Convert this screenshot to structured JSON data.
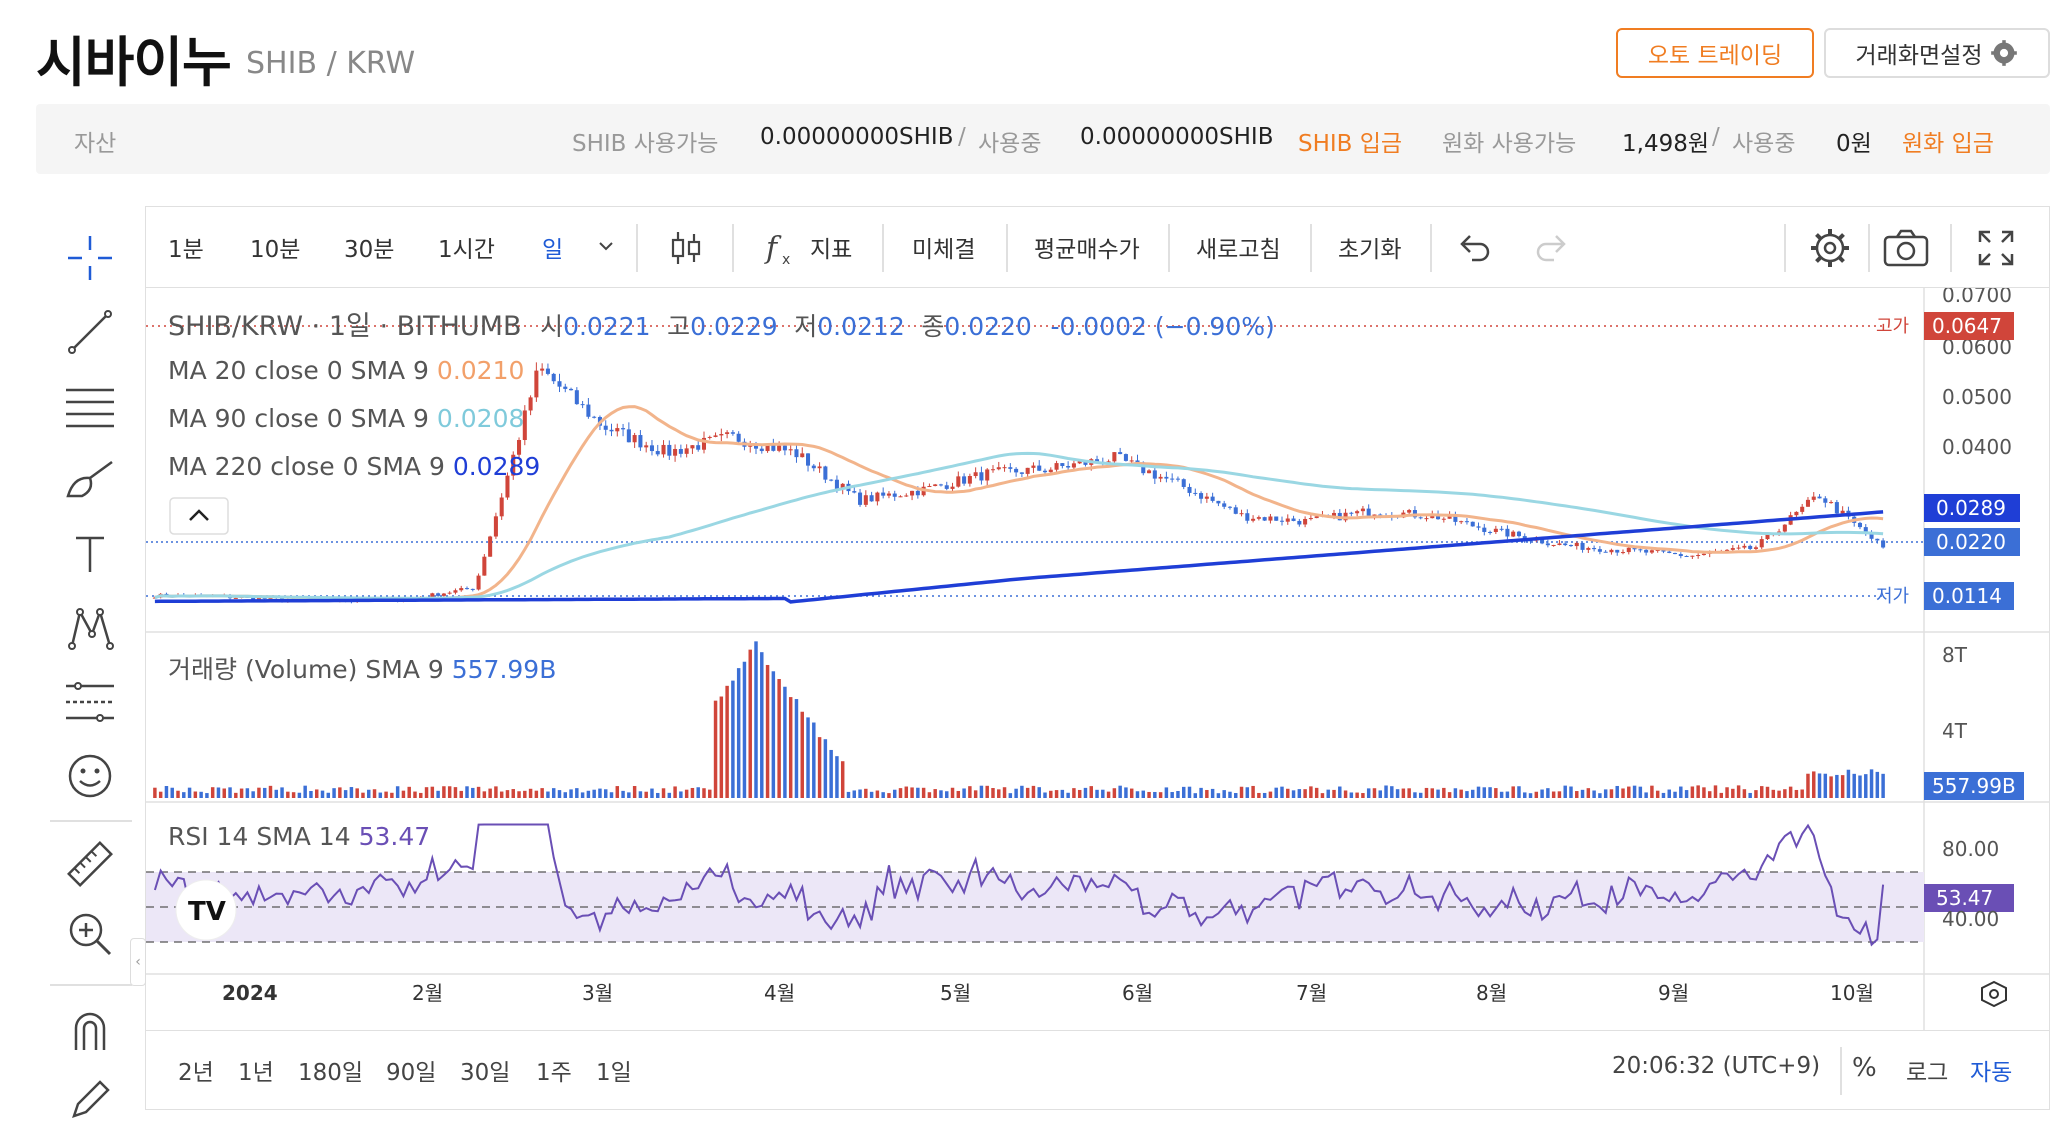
{
  "header": {
    "coin_name": "시바이누",
    "pair": "SHIB / KRW",
    "auto_trading": "오토 트레이딩",
    "screen_settings": "거래화면설정"
  },
  "assets": {
    "label": "자산",
    "shib_available_label": "SHIB 사용가능",
    "shib_available": "0.00000000SHIB",
    "sep": "/",
    "in_use_label": "사용중",
    "shib_in_use": "0.00000000SHIB",
    "shib_deposit": "SHIB 입금",
    "krw_available_label": "원화 사용가능",
    "krw_available": "1,498원",
    "krw_in_use": "0원",
    "krw_deposit": "원화 입금"
  },
  "toolbar": {
    "intervals": [
      "1분",
      "10분",
      "30분",
      "1시간",
      "일"
    ],
    "indicator": "지표",
    "unfilled": "미체결",
    "avg_price": "평균매수가",
    "refresh": "새로고침",
    "reset": "초기화"
  },
  "legend": {
    "symbol": "SHIB/KRW · 1일 · BITHUMB",
    "o_label": "시",
    "o": "0.0221",
    "h_label": "고",
    "h": "0.0229",
    "l_label": "저",
    "l": "0.0212",
    "c_label": "종",
    "c": "0.0220",
    "change": "-0.0002 (−0.90%)",
    "ma20_label": "MA 20 close 0 SMA 9",
    "ma20": "0.0210",
    "ma90_label": "MA 90 close 0 SMA 9",
    "ma90": "0.0208",
    "ma220_label": "MA 220 close 0 SMA 9",
    "ma220": "0.0289",
    "volume_label": "거래량 (Volume) SMA 9",
    "volume": "557.99B",
    "rsi_label": "RSI 14 SMA 14",
    "rsi": "53.47"
  },
  "price_axis": {
    "ticks": [
      "0.0700",
      "0.0600",
      "0.0500",
      "0.0400"
    ],
    "high_label": "고가",
    "high_value": "0.0647",
    "low_label": "저가",
    "low_value": "0.0114",
    "ma220_badge": "0.0289",
    "last_badge": "0.0220",
    "partial_tick": "0.0114"
  },
  "volume_axis": {
    "ticks": [
      "8T",
      "4T"
    ],
    "badge": "557.99B"
  },
  "rsi_axis": {
    "ticks": [
      "80.00",
      "40.00"
    ],
    "badge": "53.47"
  },
  "time_axis": [
    "2024",
    "2월",
    "3월",
    "4월",
    "5월",
    "6월",
    "7월",
    "8월",
    "9월",
    "10월"
  ],
  "bottom": {
    "ranges": [
      "2년",
      "1년",
      "180일",
      "90일",
      "30일",
      "1주",
      "1일"
    ],
    "clock": "20:06:32 (UTC+9)",
    "percent": "%",
    "log": "로그",
    "auto": "자동"
  },
  "colors": {
    "accent_orange": "#f07d22",
    "up": "#d0453a",
    "down": "#3b6fd6",
    "ma20": "#f2b48b",
    "ma90": "#9ad7e3",
    "ma220": "#1f3ed6",
    "rsi": "#6a4fb5",
    "active_blue": "#1f5bd6"
  },
  "chart_data": {
    "type": "candlestick",
    "interval": "1일",
    "x_range": [
      "2024-01",
      "2024-10"
    ],
    "y_range": [
      0.0114,
      0.07
    ],
    "last": {
      "open": 0.0221,
      "high": 0.0229,
      "low": 0.0212,
      "close": 0.022
    },
    "period_high": 0.0647,
    "period_low": 0.0114,
    "series": [
      {
        "name": "SHIB/KRW close (approx)",
        "values": [
          0.013,
          0.0128,
          0.0122,
          0.0121,
          0.0124,
          0.0145,
          0.056,
          0.045,
          0.04,
          0.043,
          0.04,
          0.031,
          0.033,
          0.036,
          0.037,
          0.039,
          0.034,
          0.028,
          0.027,
          0.029,
          0.028,
          0.025,
          0.0225,
          0.0215,
          0.0205,
          0.022,
          0.032,
          0.022
        ]
      },
      {
        "name": "MA 20 close 0 SMA 9",
        "values": [
          0.021
        ]
      },
      {
        "name": "MA 90 close 0 SMA 9",
        "values": [
          0.0208
        ]
      },
      {
        "name": "MA 220 close 0 SMA 9",
        "values": [
          0.0289
        ]
      }
    ],
    "volume": {
      "last": "557.99B",
      "ticks": [
        "8T",
        "4T"
      ]
    },
    "rsi": {
      "period": 14,
      "last": 53.47,
      "bands": [
        70,
        50,
        30
      ]
    }
  }
}
